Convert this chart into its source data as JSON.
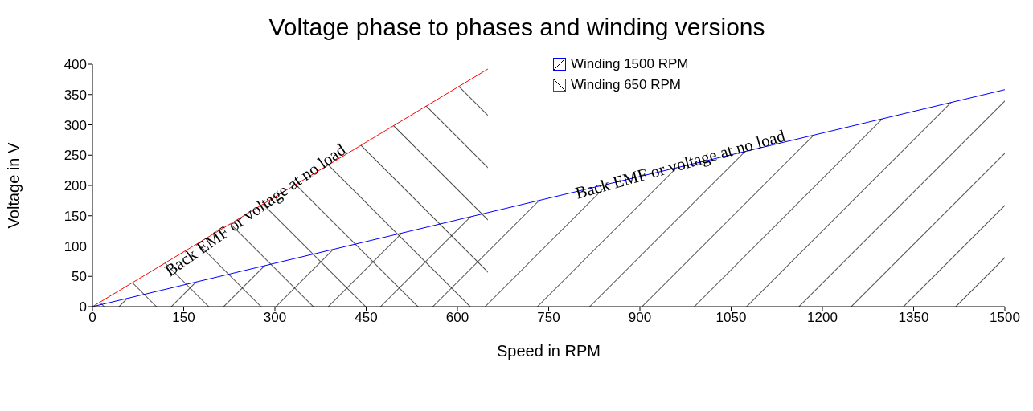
{
  "chart_data": {
    "type": "area",
    "title": "Voltage phase to phases and winding versions",
    "xlabel": "Speed in RPM",
    "ylabel": "Voltage in V",
    "series": [
      {
        "name": "Winding 1500 RPM",
        "color": "#0000ff",
        "x": [
          0,
          1500
        ],
        "values": [
          0,
          358
        ]
      },
      {
        "name": "Winding 650 RPM",
        "color": "#ff0000",
        "x": [
          0,
          650
        ],
        "values": [
          0,
          392
        ]
      }
    ],
    "xlim": [
      0,
      1500
    ],
    "xticks": [
      0,
      150,
      300,
      450,
      600,
      750,
      900,
      1050,
      1200,
      1350,
      1500
    ],
    "ylim": [
      0,
      400
    ],
    "yticks": [
      0,
      50,
      100,
      150,
      200,
      250,
      300,
      350,
      400
    ],
    "grid": false,
    "legend": "top right",
    "annotations": [
      "Back EMF or voltage at no load",
      "Back EMF or voltage at no load"
    ]
  }
}
